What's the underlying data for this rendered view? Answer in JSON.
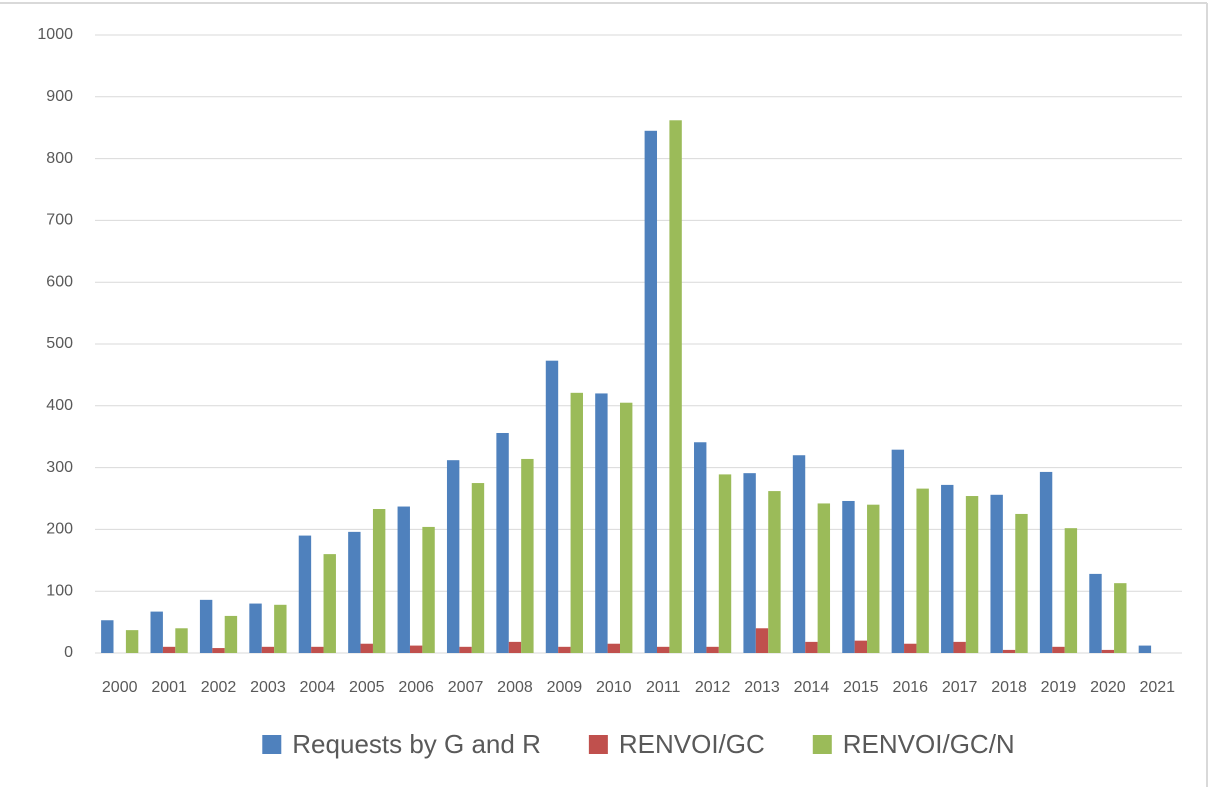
{
  "chart_data": {
    "type": "bar",
    "categories": [
      "2000",
      "2001",
      "2002",
      "2003",
      "2004",
      "2005",
      "2006",
      "2007",
      "2008",
      "2009",
      "2010",
      "2011",
      "2012",
      "2013",
      "2014",
      "2015",
      "2016",
      "2017",
      "2018",
      "2019",
      "2020",
      "2021"
    ],
    "series": [
      {
        "name": "Requests by G and R",
        "color": "#4f81bd",
        "values": [
          53,
          67,
          86,
          80,
          190,
          196,
          237,
          312,
          356,
          473,
          420,
          845,
          341,
          291,
          320,
          246,
          329,
          272,
          256,
          293,
          128,
          12
        ]
      },
      {
        "name": "RENVOI/GC",
        "color": "#c0504d",
        "values": [
          0,
          10,
          8,
          10,
          10,
          15,
          12,
          10,
          18,
          10,
          15,
          10,
          10,
          40,
          18,
          20,
          15,
          18,
          5,
          10,
          5,
          0
        ]
      },
      {
        "name": "RENVOI/GC/N",
        "color": "#9bbb59",
        "values": [
          37,
          40,
          60,
          78,
          160,
          233,
          204,
          275,
          314,
          421,
          405,
          862,
          289,
          262,
          242,
          240,
          266,
          254,
          225,
          202,
          113,
          0
        ]
      }
    ],
    "ylim": [
      0,
      1000
    ],
    "yticks": [
      0,
      100,
      200,
      300,
      400,
      500,
      600,
      700,
      800,
      900,
      1000
    ],
    "grid": true,
    "legend": "bottom"
  }
}
